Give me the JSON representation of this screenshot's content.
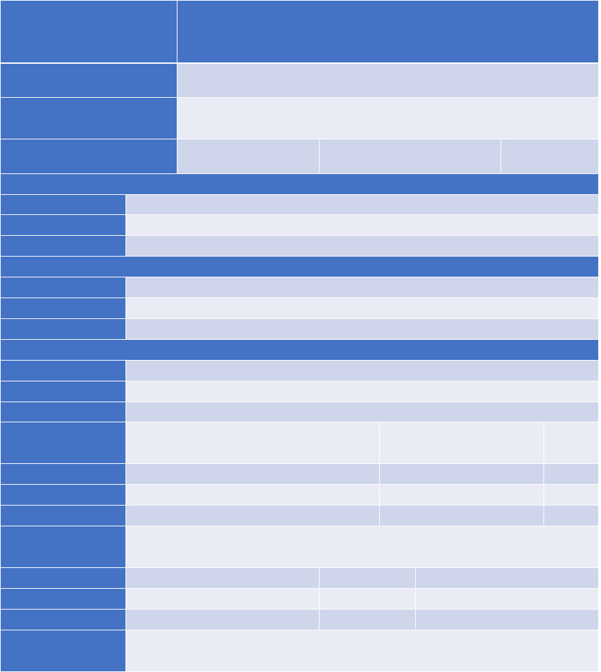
{
  "table": {
    "colors": {
      "header": "#4472C4",
      "band_dark": "#CFD5EA",
      "band_light": "#E9EBF5",
      "border": "#FFFFFF"
    },
    "cells_text": "none visible"
  }
}
